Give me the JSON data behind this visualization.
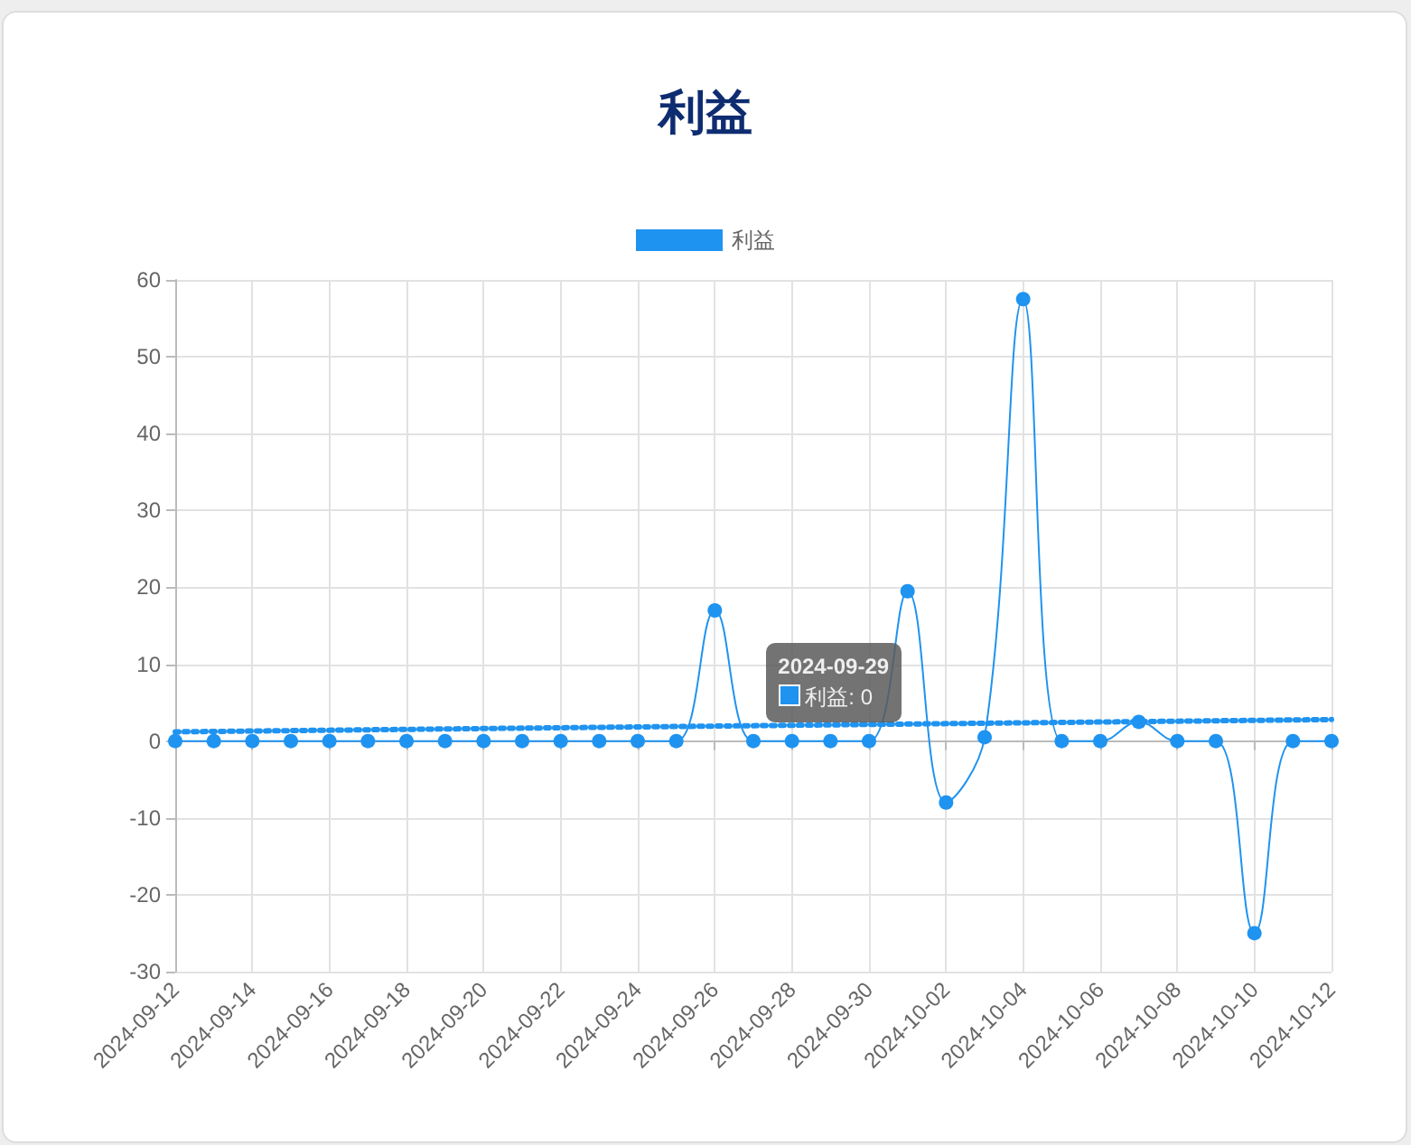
{
  "chart_data": {
    "type": "line",
    "title": "利益",
    "x": [
      "2024-09-12",
      "2024-09-13",
      "2024-09-14",
      "2024-09-15",
      "2024-09-16",
      "2024-09-17",
      "2024-09-18",
      "2024-09-19",
      "2024-09-20",
      "2024-09-21",
      "2024-09-22",
      "2024-09-23",
      "2024-09-24",
      "2024-09-25",
      "2024-09-26",
      "2024-09-27",
      "2024-09-28",
      "2024-09-29",
      "2024-09-30",
      "2024-10-01",
      "2024-10-02",
      "2024-10-03",
      "2024-10-04",
      "2024-10-05",
      "2024-10-06",
      "2024-10-07",
      "2024-10-08",
      "2024-10-09",
      "2024-10-10",
      "2024-10-11",
      "2024-10-12"
    ],
    "series": [
      {
        "name": "利益",
        "color": "#1f93f0",
        "marker": "circle",
        "line_style": "solid",
        "values": [
          0,
          0,
          0,
          0,
          0,
          0,
          0,
          0,
          0,
          0,
          0,
          0,
          0,
          0,
          17,
          0,
          0,
          0,
          0,
          19.5,
          -8,
          0.5,
          57.5,
          0,
          0,
          2.5,
          0,
          0,
          -25,
          0,
          0
        ]
      },
      {
        "type": "line",
        "color": "#1f93f0",
        "marker": "none",
        "line_style": "dotted",
        "x": [
          "2024-09-12",
          "2024-10-12"
        ],
        "values": [
          1.2,
          2.8
        ]
      }
    ],
    "xlim": [
      "2024-09-12",
      "2024-10-12"
    ],
    "xticks": [
      "2024-09-12",
      "2024-09-14",
      "2024-09-16",
      "2024-09-18",
      "2024-09-20",
      "2024-09-22",
      "2024-09-24",
      "2024-09-26",
      "2024-09-28",
      "2024-09-30",
      "2024-10-02",
      "2024-10-04",
      "2024-10-06",
      "2024-10-08",
      "2024-10-10",
      "2024-10-12"
    ],
    "ylim": [
      -30,
      60
    ],
    "yticks": [
      -30,
      -20,
      -10,
      0,
      10,
      20,
      30,
      40,
      50,
      60
    ],
    "grid": true,
    "legend": "top",
    "annotations": [
      {
        "text": "2024-09-29\n利益: 0",
        "x": "2024-09-29",
        "y": 0
      }
    ]
  }
}
